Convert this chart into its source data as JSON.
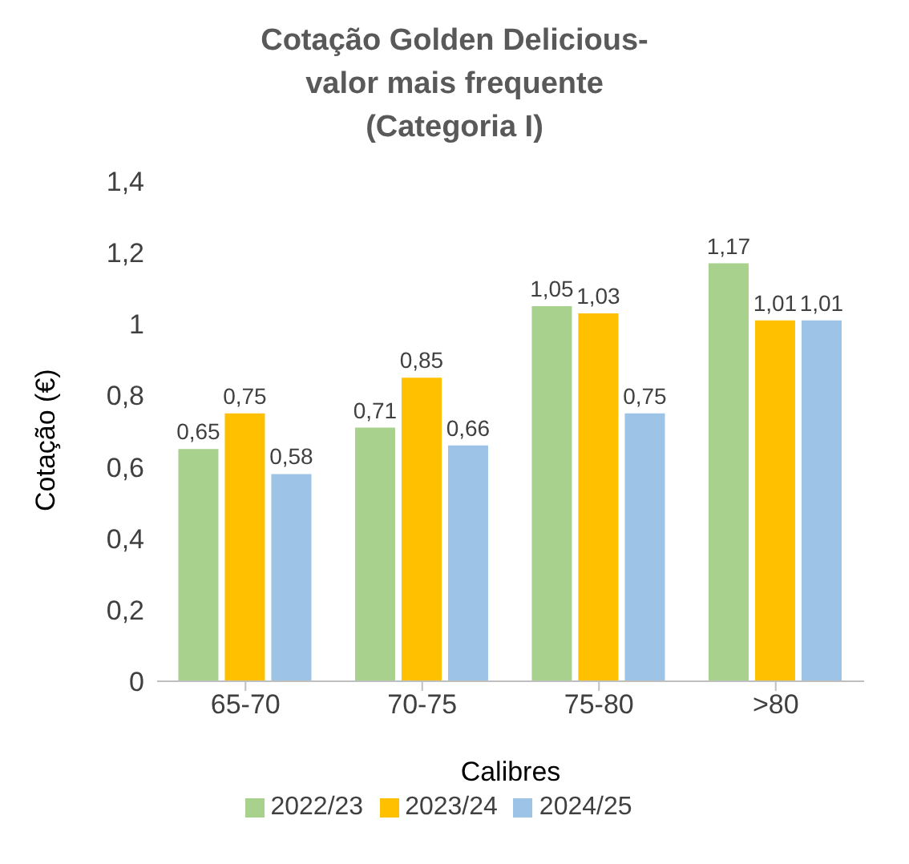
{
  "chart_data": {
    "type": "bar",
    "title": "Cotação Golden Delicious-\nvalor mais frequente\n(Categoria I)",
    "xlabel": "Calibres",
    "ylabel": "Cotação (€)",
    "categories": [
      "65-70",
      "70-75",
      "75-80",
      ">80"
    ],
    "series": [
      {
        "name": "2022/23",
        "color": "#a9d18e",
        "values": [
          0.65,
          0.71,
          1.05,
          1.17
        ],
        "value_labels": [
          "0,65",
          "0,71",
          "1,05",
          "1,17"
        ]
      },
      {
        "name": "2023/24",
        "color": "#ffc000",
        "values": [
          0.75,
          0.85,
          1.03,
          1.01
        ],
        "value_labels": [
          "0,75",
          "0,85",
          "1,03",
          "1,01"
        ]
      },
      {
        "name": "2024/25",
        "color": "#9dc3e6",
        "values": [
          0.58,
          0.66,
          0.75,
          1.01
        ],
        "value_labels": [
          "0,58",
          "0,66",
          "0,75",
          "1,01"
        ]
      }
    ],
    "ylim": [
      0,
      1.4
    ],
    "yticks": [
      0,
      {
        "value": 0.2,
        "label": "0,2"
      },
      {
        "value": 0.4,
        "label": "0,4"
      },
      {
        "value": 0.6,
        "label": "0,6"
      },
      {
        "value": 0.8,
        "label": "0,8"
      },
      1,
      {
        "value": 1.2,
        "label": "1,2"
      },
      {
        "value": 1.4,
        "label": "1,4"
      }
    ],
    "grid": false,
    "legend": "bottom"
  }
}
